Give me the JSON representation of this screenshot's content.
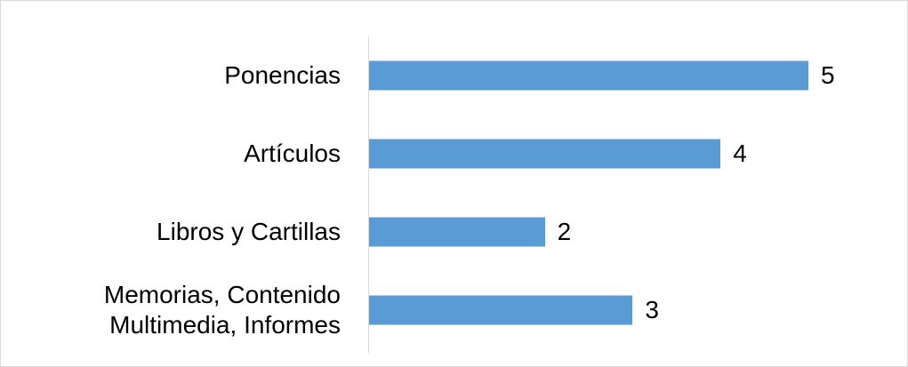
{
  "chart_data": {
    "type": "barh",
    "categories": [
      "Ponencias",
      "Artículos",
      "Libros y Cartillas",
      "Memorias, Contenido Multimedia, Informes"
    ],
    "values": [
      5,
      4,
      2,
      3
    ],
    "color": "#5b9bd5",
    "xlim": [
      0,
      5
    ]
  }
}
